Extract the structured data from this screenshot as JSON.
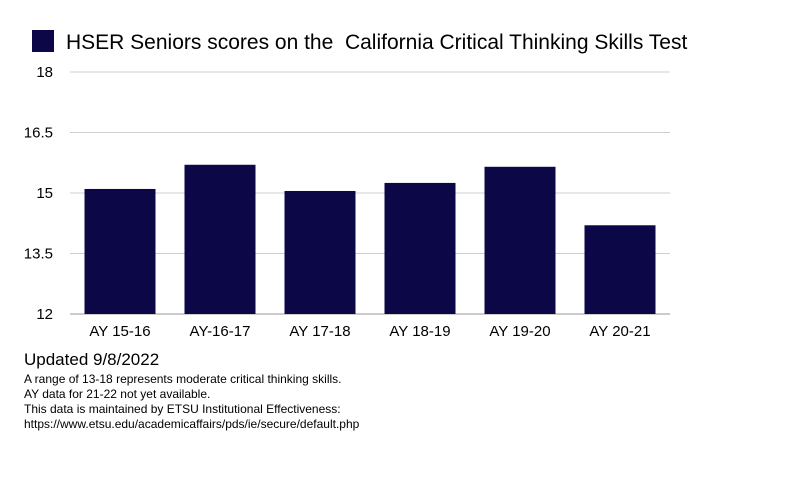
{
  "chart_data": {
    "type": "bar",
    "title": "",
    "xlabel": "",
    "ylabel": "",
    "categories": [
      "AY 15-16",
      "AY-16-17",
      "AY 17-18",
      "AY 18-19",
      "AY 19-20",
      "AY 20-21"
    ],
    "series": [
      {
        "name": "HSER Seniors scores on the  California Critical Thinking Skills Test",
        "color": "#0c0848",
        "values": [
          15.1,
          15.7,
          15.05,
          15.25,
          15.65,
          14.2
        ]
      }
    ],
    "ylim": [
      12,
      18
    ],
    "yticks": [
      "12",
      "13.5",
      "15",
      "16.5",
      "18"
    ],
    "grid": true,
    "legend_position": "top-left"
  },
  "notes": {
    "updated": "Updated 9/8/2022",
    "lines": [
      "A range of 13-18 represents moderate critical thinking skills.",
      "AY data for 21-22 not yet available.",
      "This data is maintained by ETSU Institutional Effectiveness:",
      "https://www.etsu.edu/academicaffairs/pds/ie/secure/default.php"
    ]
  }
}
